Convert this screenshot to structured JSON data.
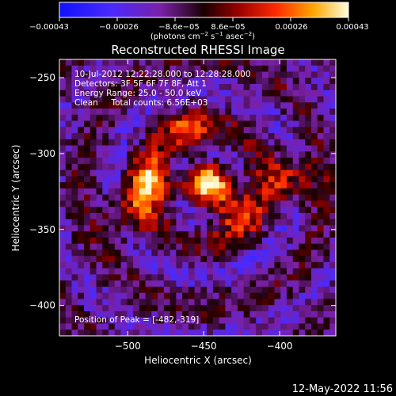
{
  "chart_data": {
    "type": "heatmap",
    "title": "Reconstructed RHESSI Image",
    "xlabel": "Heliocentric X (arcsec)",
    "ylabel": "Heliocentric Y (arcsec)",
    "xlim": [
      -545,
      -363
    ],
    "ylim": [
      -420,
      -238
    ],
    "x_ticks": [
      {
        "value": -500,
        "label": "−500"
      },
      {
        "value": -450,
        "label": "−450"
      },
      {
        "value": -400,
        "label": "−400"
      }
    ],
    "y_ticks": [
      {
        "value": -250,
        "label": "−250"
      },
      {
        "value": -300,
        "label": "−300"
      },
      {
        "value": -350,
        "label": "−350"
      },
      {
        "value": -400,
        "label": "−400"
      }
    ],
    "annotations": [
      "10-Jul-2012 12:22:28.000 to 12:28:28.000",
      "Detectors: 3F 5F 6F 7F 8F, Att 1",
      "Energy Range: 25.0 - 50.0 keV",
      "Clean     Total counts: 6.56E+03"
    ],
    "peak_label": "Position of Peak = [-482,-319]",
    "peak": [
      -482,
      -319
    ],
    "grid_size": 45,
    "sources": [
      {
        "x": -482,
        "y": -319,
        "value": 0.00043
      },
      {
        "x": -444,
        "y": -320,
        "value": 0.00041
      },
      {
        "x": -430,
        "y": -338,
        "value": 0.0003
      },
      {
        "x": -393,
        "y": -316,
        "value": 0.00029
      },
      {
        "x": -460,
        "y": -286,
        "value": 0.00024
      },
      {
        "x": -500,
        "y": -340,
        "value": 0.00022
      }
    ],
    "background_value": -0.0001,
    "colorbar": {
      "range": [
        -0.00043,
        0.00043
      ],
      "colormap": "rhessi-heat",
      "ticks": [
        "−0.00043",
        "−0.00026",
        "−8.6e−05",
        "8.6e−05",
        "0.00026",
        "0.00043"
      ],
      "units_parts": [
        "(photons cm",
        "−2",
        " s",
        "−1",
        " asec",
        "−2",
        ")"
      ]
    }
  },
  "footer": {
    "timestamp": "12-May-2022 11:56"
  },
  "colors": {
    "background": "#000000",
    "text": "#ffffff",
    "accent_peak": "#ffff66"
  }
}
